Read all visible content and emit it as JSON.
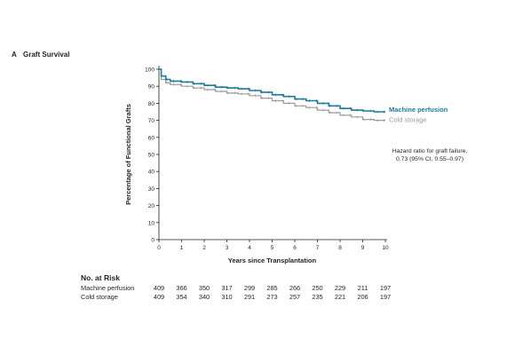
{
  "panel": {
    "letter": "A",
    "title": "Graft Survival"
  },
  "chart_data": {
    "type": "line",
    "title": "Graft Survival",
    "xlabel": "Years since Transplantation",
    "ylabel": "Percentage of Functional Grafts",
    "xlim": [
      0,
      10
    ],
    "ylim": [
      0,
      100
    ],
    "xticks": [
      "0",
      "1",
      "2",
      "3",
      "4",
      "5",
      "6",
      "7",
      "8",
      "9",
      "10"
    ],
    "yticks": [
      "0",
      "10",
      "20",
      "30",
      "40",
      "50",
      "60",
      "70",
      "80",
      "90",
      "100"
    ],
    "grid": false,
    "series": [
      {
        "name": "Machine perfusion",
        "color": "#1f7a9c",
        "x": [
          0,
          0.1,
          0.3,
          0.5,
          1,
          1.5,
          2,
          2.5,
          3,
          3.5,
          4,
          4.5,
          5,
          5.5,
          6,
          6.5,
          7,
          7.5,
          8,
          8.5,
          9,
          9.5,
          10
        ],
        "y": [
          100,
          96,
          94,
          93,
          92.5,
          91.5,
          90.5,
          89.5,
          89,
          88.5,
          87.5,
          86.5,
          85,
          84,
          82.5,
          81.5,
          80,
          78.5,
          77,
          76,
          75.5,
          75,
          75
        ]
      },
      {
        "name": "Cold storage",
        "color": "#9a9a9a",
        "x": [
          0,
          0.1,
          0.3,
          0.5,
          1,
          1.5,
          2,
          2.5,
          3,
          3.5,
          4,
          4.5,
          5,
          5.5,
          6,
          6.5,
          7,
          7.5,
          8,
          8.5,
          9,
          9.5,
          10
        ],
        "y": [
          100,
          94,
          92,
          91,
          90,
          89,
          88,
          87,
          86,
          85.5,
          84.5,
          83,
          81.5,
          80,
          78.5,
          77.5,
          76,
          74.5,
          73,
          72,
          70.5,
          70,
          70
        ]
      }
    ],
    "annotation": [
      "Hazard ratio for graft failure,",
      "0.73 (95% CI, 0.55–0.97)"
    ],
    "risk_table": {
      "title": "No. at Risk",
      "rows": [
        {
          "label": "Machine perfusion",
          "values": [
            "409",
            "366",
            "350",
            "317",
            "299",
            "285",
            "266",
            "250",
            "229",
            "211",
            "197"
          ]
        },
        {
          "label": "Cold storage",
          "values": [
            "409",
            "354",
            "340",
            "310",
            "291",
            "273",
            "257",
            "235",
            "221",
            "206",
            "197"
          ]
        }
      ]
    }
  }
}
